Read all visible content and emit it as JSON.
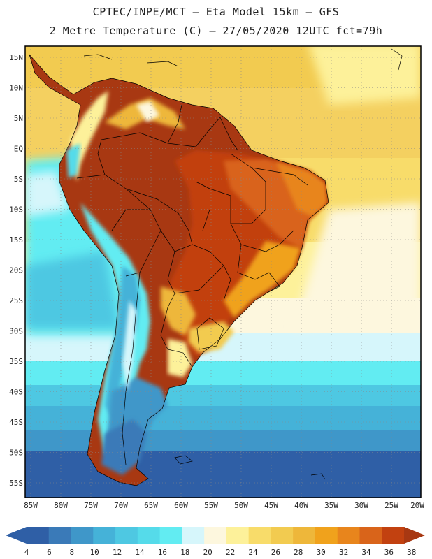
{
  "header": {
    "line1": "CPTEC/INPE/MCT –  Eta Model 15km – GFS",
    "line2": "2 Metre Temperature (C) – 27/05/2020 12UTC fct=79h"
  },
  "map": {
    "region": "South America",
    "variable": "2 Metre Temperature",
    "units": "C",
    "lat_labels": [
      "15N",
      "10N",
      "5N",
      "EQ",
      "5S",
      "10S",
      "15S",
      "20S",
      "25S",
      "30S",
      "35S",
      "40S",
      "45S",
      "50S",
      "55S"
    ],
    "lon_labels": [
      "85W",
      "80W",
      "75W",
      "70W",
      "65W",
      "60W",
      "55W",
      "50W",
      "45W",
      "40W",
      "35W",
      "30W",
      "25W",
      "20W"
    ]
  },
  "colorbar": {
    "ticks": [
      "4",
      "6",
      "8",
      "10",
      "12",
      "14",
      "16",
      "18",
      "20",
      "22",
      "24",
      "26",
      "28",
      "30",
      "32",
      "34",
      "36",
      "38"
    ],
    "colors": [
      "#2f5fa6",
      "#3a7ab8",
      "#3f97c9",
      "#45b2d8",
      "#4ec8e2",
      "#55dbea",
      "#62ecf2",
      "#d6f6fb",
      "#fdf7de",
      "#fdf19a",
      "#f8dc6a",
      "#f2cb50",
      "#eeb73a",
      "#f0a21c",
      "#e8851c",
      "#d9641a",
      "#c24110",
      "#a83812"
    ]
  }
}
